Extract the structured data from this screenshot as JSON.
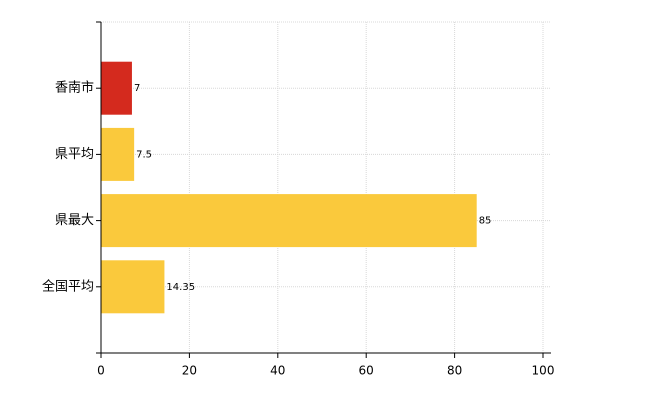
{
  "chart_data": {
    "type": "barh",
    "categories": [
      "香南市",
      "県平均",
      "県最大",
      "全国平均"
    ],
    "values": [
      7,
      7.5,
      85,
      14.35
    ],
    "colors": [
      "#d42a1e",
      "#fac93c",
      "#fac93c",
      "#fac93c"
    ],
    "xlim": [
      0,
      100
    ],
    "xticks": [
      0,
      20,
      40,
      60,
      80,
      100
    ],
    "grid": true
  }
}
